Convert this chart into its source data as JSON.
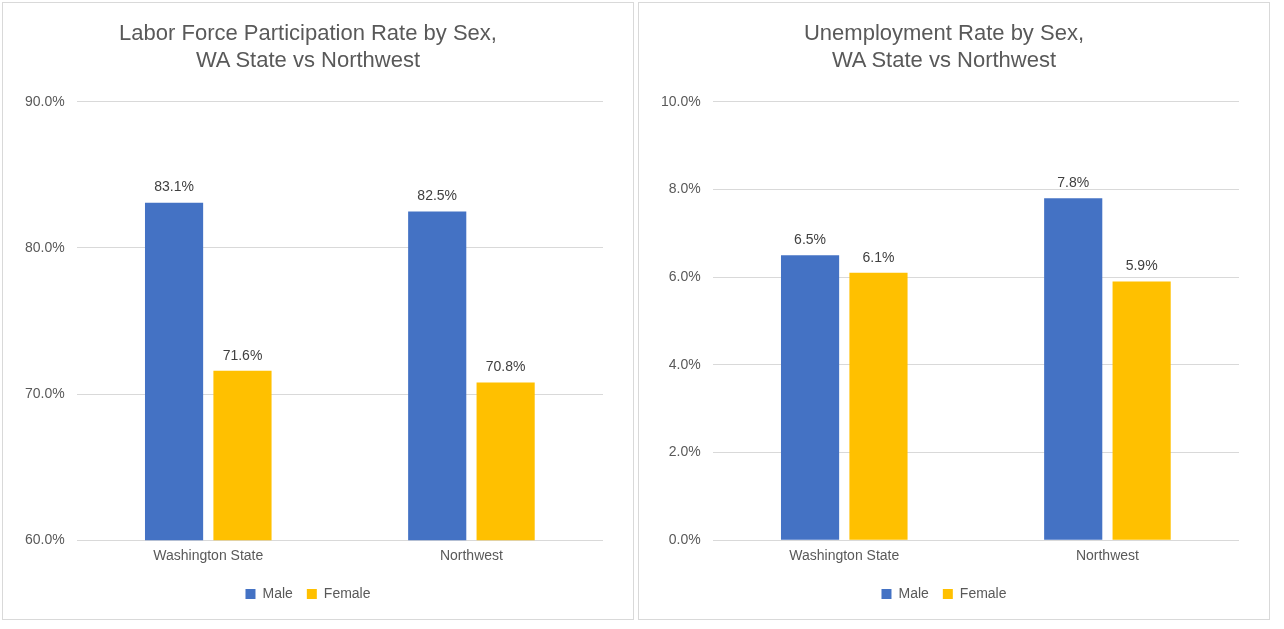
{
  "chart_data": [
    {
      "type": "bar",
      "title": "Labor Force Participation Rate by Sex,\nWA State vs Northwest",
      "categories": [
        "Washington State",
        "Northwest"
      ],
      "series": [
        {
          "name": "Male",
          "color": "#4472c4",
          "values": [
            83.1,
            82.5
          ],
          "value_labels": [
            "83.1%",
            "82.5%"
          ]
        },
        {
          "name": "Female",
          "color": "#ffc000",
          "values": [
            71.6,
            70.8
          ],
          "value_labels": [
            "71.6%",
            "70.8%"
          ]
        }
      ],
      "ylim": [
        60,
        90
      ],
      "yticks": [
        {
          "value": 60,
          "label": "60.0%"
        },
        {
          "value": 70,
          "label": "70.0%"
        },
        {
          "value": 80,
          "label": "80.0%"
        },
        {
          "value": 90,
          "label": "90.0%"
        }
      ],
      "grid": "y",
      "legend": "bottom"
    },
    {
      "type": "bar",
      "title": "Unemployment Rate by Sex,\nWA State vs Northwest",
      "categories": [
        "Washington State",
        "Northwest"
      ],
      "series": [
        {
          "name": "Male",
          "color": "#4472c4",
          "values": [
            6.5,
            7.8
          ],
          "value_labels": [
            "6.5%",
            "7.8%"
          ]
        },
        {
          "name": "Female",
          "color": "#ffc000",
          "values": [
            6.1,
            5.9
          ],
          "value_labels": [
            "6.1%",
            "5.9%"
          ]
        }
      ],
      "ylim": [
        0,
        10
      ],
      "yticks": [
        {
          "value": 0,
          "label": "0.0%"
        },
        {
          "value": 2,
          "label": "2.0%"
        },
        {
          "value": 4,
          "label": "4.0%"
        },
        {
          "value": 6,
          "label": "6.0%"
        },
        {
          "value": 8,
          "label": "8.0%"
        },
        {
          "value": 10,
          "label": "10.0%"
        }
      ],
      "grid": "y",
      "legend": "bottom"
    }
  ]
}
